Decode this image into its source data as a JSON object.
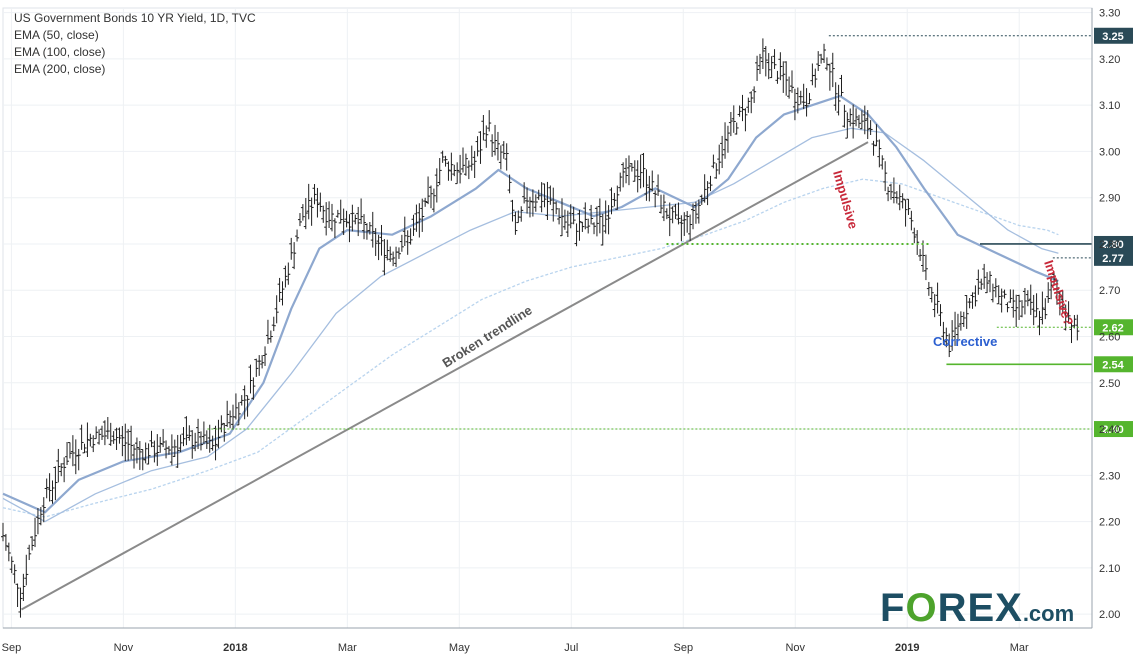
{
  "legend": {
    "title": "US Government Bonds 10 YR Yield, 1D, TVC",
    "ema50": "EMA (50, close)",
    "ema100": "EMA (100, close)",
    "ema200": "EMA (200, close)"
  },
  "logo": {
    "text_fo": "F",
    "text_o": "O",
    "text_rex": "REX",
    "text_dot": ".com"
  },
  "colors": {
    "background": "#ffffff",
    "bars": "#1f1f1f",
    "ema50": "#8ea8cf",
    "ema100": "#a5bedf",
    "ema200": "#b9d4ee",
    "trendline": "#8a8a8a",
    "badge_dark": "#2a4a57",
    "badge_green": "#55b52e",
    "impulsive": "#c8293a",
    "corrective": "#2b5fd0",
    "logo_green": "#4da32c",
    "logo_dark": "#1d4e63"
  },
  "annotations": {
    "broken_trendline": "Broken trendline",
    "impulsive": "Impulsive",
    "impulsive_q": "Impulsive?",
    "corrective": "Corrective"
  },
  "chart_data": {
    "type": "ohlc",
    "title": "US Government Bonds 10 YR Yield, 1D, TVC",
    "xlabel": "",
    "ylabel": "",
    "ylim": [
      1.97,
      3.31
    ],
    "y_ticks": [
      "2.00",
      "2.10",
      "2.20",
      "2.30",
      "2.40",
      "2.50",
      "2.60",
      "2.70",
      "2.80",
      "2.90",
      "3.00",
      "3.10",
      "3.20",
      "3.30"
    ],
    "x_ticks": [
      {
        "label": "Sep",
        "t": 0,
        "bold": false
      },
      {
        "label": "Nov",
        "t": 2,
        "bold": false
      },
      {
        "label": "2018",
        "t": 4,
        "bold": true
      },
      {
        "label": "Mar",
        "t": 6,
        "bold": false
      },
      {
        "label": "May",
        "t": 8,
        "bold": false
      },
      {
        "label": "Jul",
        "t": 10,
        "bold": false
      },
      {
        "label": "Sep",
        "t": 12,
        "bold": false
      },
      {
        "label": "Nov",
        "t": 14,
        "bold": false
      },
      {
        "label": "2019",
        "t": 16,
        "bold": true
      },
      {
        "label": "Mar",
        "t": 18,
        "bold": false
      }
    ],
    "t_range": [
      -0.15,
      19.3
    ],
    "price_anchors": [
      [
        -0.15,
        2.17
      ],
      [
        0.18,
        2.04
      ],
      [
        0.3,
        2.12
      ],
      [
        0.55,
        2.24
      ],
      [
        1.0,
        2.34
      ],
      [
        1.4,
        2.38
      ],
      [
        1.8,
        2.39
      ],
      [
        2.3,
        2.35
      ],
      [
        2.8,
        2.36
      ],
      [
        3.3,
        2.38
      ],
      [
        3.6,
        2.36
      ],
      [
        3.85,
        2.42
      ],
      [
        4.2,
        2.47
      ],
      [
        4.6,
        2.6
      ],
      [
        4.95,
        2.75
      ],
      [
        5.2,
        2.86
      ],
      [
        5.45,
        2.9
      ],
      [
        5.65,
        2.86
      ],
      [
        5.9,
        2.86
      ],
      [
        6.3,
        2.84
      ],
      [
        6.55,
        2.8
      ],
      [
        6.8,
        2.78
      ],
      [
        7.15,
        2.82
      ],
      [
        7.5,
        2.9
      ],
      [
        7.7,
        2.98
      ],
      [
        8.0,
        2.96
      ],
      [
        8.3,
        2.98
      ],
      [
        8.5,
        3.06
      ],
      [
        8.65,
        3.01
      ],
      [
        8.85,
        2.98
      ],
      [
        9.0,
        2.82
      ],
      [
        9.2,
        2.9
      ],
      [
        9.5,
        2.9
      ],
      [
        9.7,
        2.88
      ],
      [
        9.95,
        2.84
      ],
      [
        10.3,
        2.84
      ],
      [
        10.6,
        2.85
      ],
      [
        10.8,
        2.92
      ],
      [
        11.0,
        2.95
      ],
      [
        11.25,
        2.96
      ],
      [
        11.5,
        2.91
      ],
      [
        11.7,
        2.87
      ],
      [
        11.9,
        2.84
      ],
      [
        12.2,
        2.86
      ],
      [
        12.4,
        2.92
      ],
      [
        12.65,
        2.99
      ],
      [
        12.85,
        3.05
      ],
      [
        13.05,
        3.08
      ],
      [
        13.25,
        3.12
      ],
      [
        13.4,
        3.21
      ],
      [
        13.6,
        3.18
      ],
      [
        13.8,
        3.16
      ],
      [
        14.0,
        3.12
      ],
      [
        14.2,
        3.11
      ],
      [
        14.4,
        3.18
      ],
      [
        14.55,
        3.21
      ],
      [
        14.75,
        3.13
      ],
      [
        14.95,
        3.08
      ],
      [
        15.15,
        3.06
      ],
      [
        15.35,
        3.05
      ],
      [
        15.5,
        2.99
      ],
      [
        15.65,
        2.93
      ],
      [
        15.85,
        2.9
      ],
      [
        16.05,
        2.86
      ],
      [
        16.25,
        2.78
      ],
      [
        16.35,
        2.72
      ],
      [
        16.6,
        2.64
      ],
      [
        16.75,
        2.58
      ],
      [
        16.95,
        2.64
      ],
      [
        17.2,
        2.69
      ],
      [
        17.4,
        2.72
      ],
      [
        17.55,
        2.71
      ],
      [
        17.7,
        2.68
      ],
      [
        17.9,
        2.66
      ],
      [
        18.1,
        2.67
      ],
      [
        18.3,
        2.65
      ],
      [
        18.5,
        2.66
      ],
      [
        18.6,
        2.72
      ],
      [
        18.75,
        2.68
      ],
      [
        18.9,
        2.64
      ],
      [
        19.0,
        2.62
      ],
      [
        19.05,
        2.61
      ]
    ],
    "ema50": [
      [
        -0.15,
        2.26
      ],
      [
        0.6,
        2.22
      ],
      [
        1.2,
        2.29
      ],
      [
        2.0,
        2.33
      ],
      [
        3.0,
        2.35
      ],
      [
        3.9,
        2.39
      ],
      [
        4.5,
        2.5
      ],
      [
        5.0,
        2.66
      ],
      [
        5.5,
        2.79
      ],
      [
        6.0,
        2.83
      ],
      [
        6.8,
        2.82
      ],
      [
        7.5,
        2.86
      ],
      [
        8.3,
        2.92
      ],
      [
        8.7,
        2.96
      ],
      [
        9.2,
        2.92
      ],
      [
        9.8,
        2.89
      ],
      [
        10.4,
        2.86
      ],
      [
        10.9,
        2.88
      ],
      [
        11.5,
        2.92
      ],
      [
        12.2,
        2.88
      ],
      [
        12.8,
        2.94
      ],
      [
        13.3,
        3.03
      ],
      [
        13.8,
        3.08
      ],
      [
        14.3,
        3.1
      ],
      [
        14.8,
        3.12
      ],
      [
        15.3,
        3.08
      ],
      [
        15.8,
        3.01
      ],
      [
        16.3,
        2.92
      ],
      [
        16.9,
        2.82
      ],
      [
        17.6,
        2.78
      ],
      [
        18.3,
        2.74
      ],
      [
        18.7,
        2.72
      ]
    ],
    "ema100": [
      [
        -0.15,
        2.25
      ],
      [
        0.6,
        2.2
      ],
      [
        1.5,
        2.26
      ],
      [
        2.5,
        2.31
      ],
      [
        3.5,
        2.34
      ],
      [
        4.2,
        2.4
      ],
      [
        5.0,
        2.52
      ],
      [
        5.8,
        2.65
      ],
      [
        6.6,
        2.73
      ],
      [
        7.4,
        2.78
      ],
      [
        8.2,
        2.83
      ],
      [
        9.0,
        2.87
      ],
      [
        9.8,
        2.86
      ],
      [
        10.6,
        2.87
      ],
      [
        11.4,
        2.88
      ],
      [
        12.2,
        2.89
      ],
      [
        12.9,
        2.93
      ],
      [
        13.6,
        2.98
      ],
      [
        14.3,
        3.03
      ],
      [
        15.0,
        3.05
      ],
      [
        15.6,
        3.04
      ],
      [
        16.3,
        2.98
      ],
      [
        17.0,
        2.91
      ],
      [
        17.8,
        2.83
      ],
      [
        18.4,
        2.79
      ],
      [
        18.7,
        2.78
      ]
    ],
    "ema200": [
      [
        -0.15,
        2.23
      ],
      [
        0.6,
        2.21
      ],
      [
        1.5,
        2.24
      ],
      [
        2.5,
        2.27
      ],
      [
        3.5,
        2.31
      ],
      [
        4.4,
        2.35
      ],
      [
        5.2,
        2.42
      ],
      [
        6.0,
        2.49
      ],
      [
        6.8,
        2.56
      ],
      [
        7.6,
        2.62
      ],
      [
        8.4,
        2.68
      ],
      [
        9.2,
        2.72
      ],
      [
        10.0,
        2.75
      ],
      [
        10.8,
        2.77
      ],
      [
        11.6,
        2.79
      ],
      [
        12.4,
        2.82
      ],
      [
        13.1,
        2.85
      ],
      [
        13.8,
        2.89
      ],
      [
        14.5,
        2.92
      ],
      [
        15.2,
        2.94
      ],
      [
        15.9,
        2.93
      ],
      [
        16.6,
        2.9
      ],
      [
        17.3,
        2.87
      ],
      [
        18.0,
        2.84
      ],
      [
        18.5,
        2.83
      ],
      [
        18.7,
        2.82
      ]
    ],
    "trendline": {
      "from": [
        0.18,
        2.01
      ],
      "to": [
        15.3,
        3.02
      ]
    },
    "levels": [
      {
        "label": "3.25",
        "value": 3.25,
        "from_t": 14.6,
        "kind": "dark",
        "line": "dotted-dark"
      },
      {
        "label": "2.80",
        "value": 2.8,
        "from_t": 17.3,
        "kind": "dark",
        "line": "solid-dark"
      },
      {
        "label": "2.77",
        "value": 2.77,
        "from_t": 18.6,
        "kind": "dark",
        "line": "dotted-dark"
      },
      {
        "label": "2.62",
        "value": 2.62,
        "from_t": 17.6,
        "kind": "green",
        "line": "dotted-green"
      },
      {
        "label": "2.54",
        "value": 2.54,
        "from_t": 16.7,
        "kind": "green",
        "line": "solid-green"
      },
      {
        "label": "2.40",
        "value": 2.4,
        "from_t": 3.5,
        "kind": "green",
        "line": "dotted-green"
      }
    ],
    "support_2_80": {
      "value": 2.8,
      "from_t": 11.7,
      "to_t": 16.4
    },
    "grid": true,
    "legend_position": "top-left"
  }
}
